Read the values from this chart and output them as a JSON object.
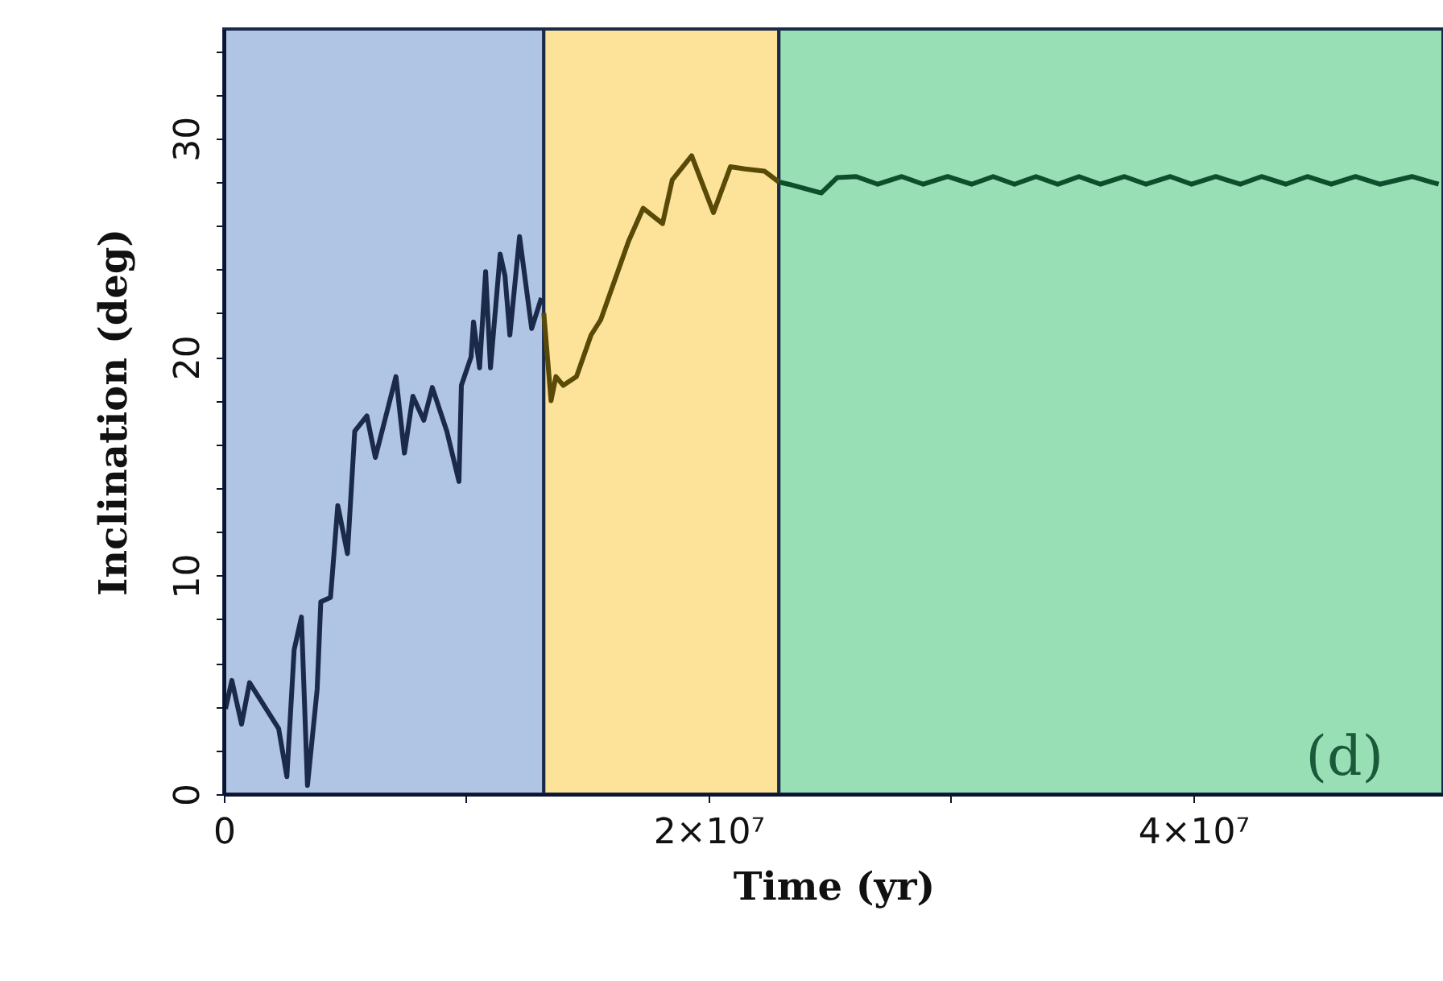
{
  "chart_data": {
    "type": "line",
    "xlabel": "Time (yr)",
    "ylabel": "Inclination (deg)",
    "xlim": [
      0,
      50300000
    ],
    "ylim": [
      0,
      35
    ],
    "xticks": [
      0,
      {
        "value": 10000000,
        "label": null
      },
      {
        "value": 20000000,
        "label": "2×10⁷"
      },
      {
        "value": 30000000,
        "label": null
      },
      {
        "value": 40000000,
        "label": "4×10⁷"
      }
    ],
    "yticks": [
      0,
      {
        "value": 2,
        "label": null
      },
      {
        "value": 4,
        "label": null
      },
      {
        "value": 6,
        "label": null
      },
      {
        "value": 8,
        "label": null
      },
      10,
      {
        "value": 12,
        "label": null
      },
      {
        "value": 14,
        "label": null
      },
      {
        "value": 16,
        "label": null
      },
      {
        "value": 18,
        "label": null
      },
      20,
      {
        "value": 22,
        "label": null
      },
      {
        "value": 24,
        "label": null
      },
      {
        "value": 26,
        "label": null
      },
      {
        "value": 28,
        "label": null
      },
      30,
      {
        "value": 32,
        "label": null
      },
      {
        "value": 34,
        "label": null
      }
    ],
    "grid": false,
    "line_style": "solid",
    "marker": "none",
    "bands": [
      {
        "axis": "x",
        "from": 0,
        "to": 13200000,
        "color": "#b0c4e4"
      },
      {
        "axis": "x",
        "from": 13200000,
        "to": 22900000,
        "color": "#fde399"
      },
      {
        "axis": "x",
        "from": 22900000,
        "to": 50300000,
        "color": "#98dfb6"
      }
    ],
    "annotations": [
      "(d)"
    ],
    "series": [
      {
        "color": "#1c2a4a",
        "x": [
          70000,
          330000,
          730000,
          1060000,
          2260000,
          2600000,
          2900000,
          3200000,
          3450000,
          3850000,
          4000000,
          4400000,
          4700000,
          5100000,
          5400000,
          5900000,
          6250000,
          7100000,
          7450000,
          7800000,
          8250000,
          8600000,
          9200000,
          9700000,
          9800000,
          10200000,
          10300000,
          10550000,
          10800000,
          11000000,
          11400000,
          11600000,
          11800000,
          12200000,
          12700000,
          13100000
        ],
        "values": [
          3.9,
          5.2,
          3.2,
          5.1,
          3.0,
          0.8,
          6.6,
          8.1,
          0.4,
          4.8,
          8.8,
          9.0,
          13.2,
          11.0,
          16.6,
          17.3,
          15.4,
          19.1,
          15.6,
          18.2,
          17.1,
          18.6,
          16.6,
          14.3,
          18.7,
          20.0,
          21.6,
          19.5,
          23.9,
          19.5,
          24.7,
          23.7,
          21.0,
          25.5,
          21.3,
          22.7
        ]
      },
      {
        "color": "#5a4a08",
        "x": [
          13200000,
          13500000,
          13700000,
          14000000,
          14550000,
          15150000,
          15550000,
          16700000,
          17300000,
          18100000,
          18500000,
          19300000,
          20200000,
          20900000,
          21500000,
          22300000,
          22900000
        ],
        "values": [
          22.0,
          18.0,
          19.1,
          18.7,
          19.1,
          21.0,
          21.7,
          25.3,
          26.8,
          26.1,
          28.1,
          29.2,
          26.6,
          28.7,
          28.6,
          28.5,
          28.0
        ]
      },
      {
        "color": "#0d4f2a",
        "x": [
          22900000,
          23300000,
          24650000,
          25300000,
          26090000,
          26980000,
          27970000,
          28860000,
          29860000,
          30850000,
          31740000,
          32620000,
          33510000,
          34400000,
          35280000,
          36170000,
          37160000,
          38050000,
          39050000,
          39930000,
          40930000,
          41930000,
          42810000,
          43810000,
          44700000,
          45690000,
          46690000,
          47690000,
          49020000,
          50120000
        ],
        "values": [
          28.0,
          27.9,
          27.5,
          28.2,
          28.25,
          27.9,
          28.25,
          27.9,
          28.25,
          27.9,
          28.25,
          27.9,
          28.25,
          27.9,
          28.25,
          27.9,
          28.25,
          27.9,
          28.25,
          27.9,
          28.25,
          27.9,
          28.25,
          27.9,
          28.25,
          27.9,
          28.25,
          27.9,
          28.25,
          27.9
        ]
      }
    ]
  }
}
